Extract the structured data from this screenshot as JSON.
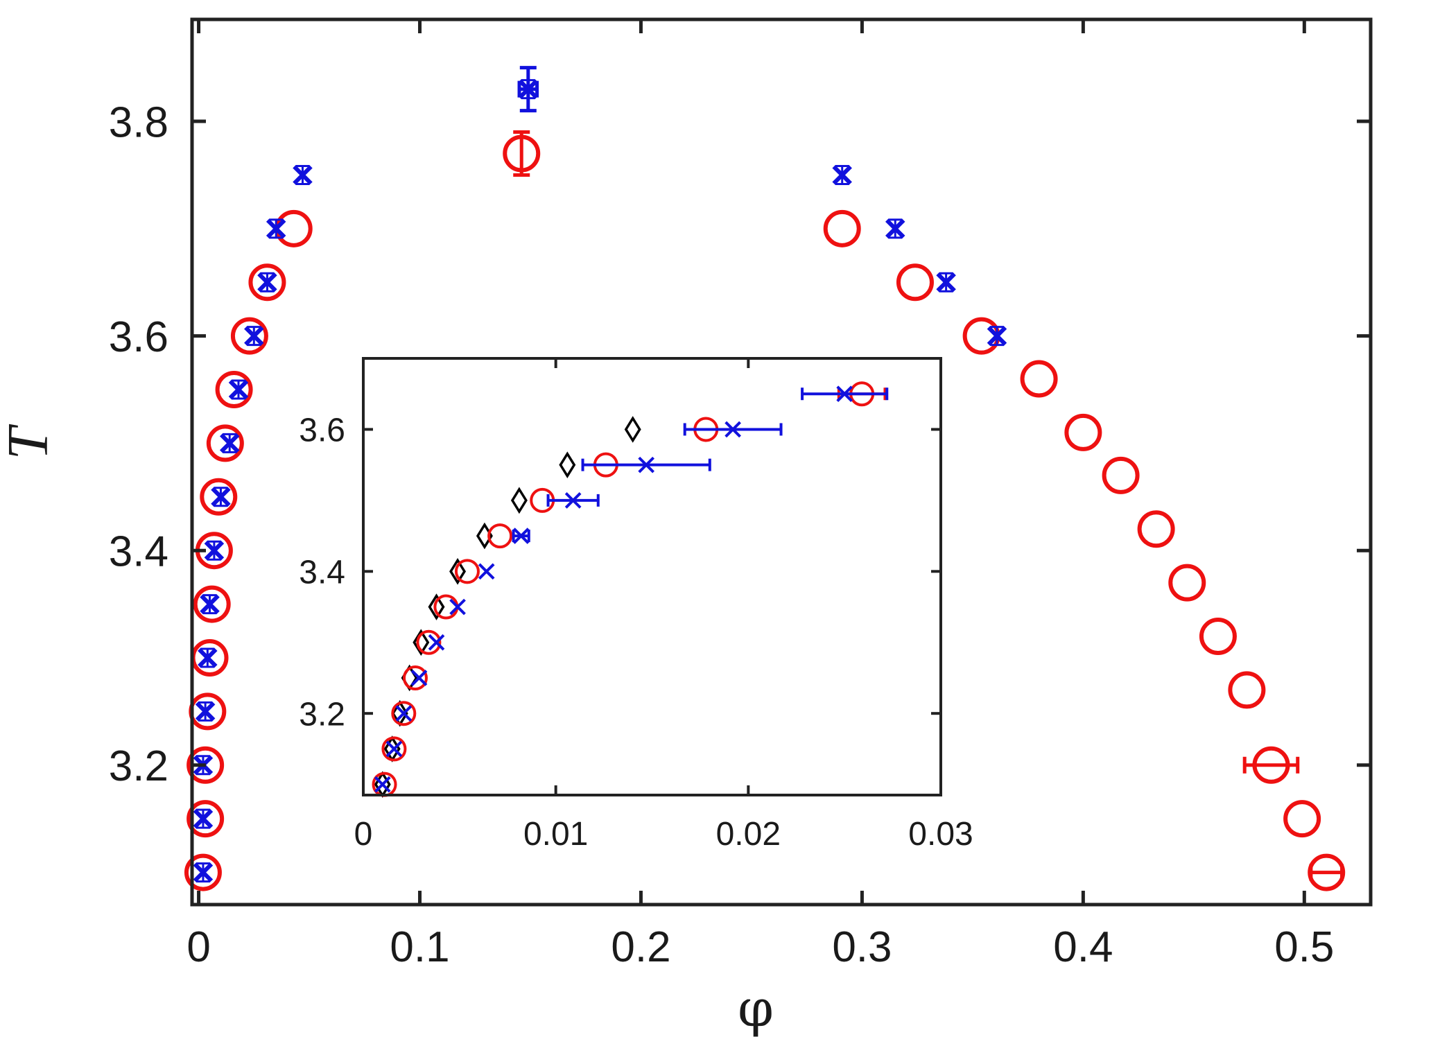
{
  "chart_data": [
    {
      "id": "main",
      "type": "scatter",
      "xlabel": "φ",
      "ylabel": "T",
      "xlim": [
        -0.003,
        0.53
      ],
      "ylim": [
        3.07,
        3.895
      ],
      "xticks": [
        0,
        0.1,
        0.2,
        0.3,
        0.4,
        0.5
      ],
      "xtick_labels": [
        "0",
        "0.1",
        "0.2",
        "0.3",
        "0.4",
        "0.5"
      ],
      "yticks": [
        3.2,
        3.4,
        3.6,
        3.8
      ],
      "ytick_labels": [
        "3.2",
        "3.4",
        "3.6",
        "3.8"
      ],
      "grid": false,
      "series": [
        {
          "name": "red circles",
          "marker": "circle",
          "color": "#ee1111",
          "points": [
            {
              "x": 0.002,
              "y": 3.1
            },
            {
              "x": 0.003,
              "y": 3.15
            },
            {
              "x": 0.003,
              "y": 3.2
            },
            {
              "x": 0.004,
              "y": 3.25
            },
            {
              "x": 0.005,
              "y": 3.3
            },
            {
              "x": 0.006,
              "y": 3.35
            },
            {
              "x": 0.007,
              "y": 3.4
            },
            {
              "x": 0.009,
              "y": 3.45
            },
            {
              "x": 0.012,
              "y": 3.5
            },
            {
              "x": 0.016,
              "y": 3.55
            },
            {
              "x": 0.023,
              "y": 3.6
            },
            {
              "x": 0.031,
              "y": 3.65
            },
            {
              "x": 0.043,
              "y": 3.7
            },
            {
              "x": 0.146,
              "y": 3.77,
              "yerr": 0.02
            },
            {
              "x": 0.291,
              "y": 3.7
            },
            {
              "x": 0.324,
              "y": 3.65
            },
            {
              "x": 0.354,
              "y": 3.6
            },
            {
              "x": 0.38,
              "y": 3.56
            },
            {
              "x": 0.4,
              "y": 3.51
            },
            {
              "x": 0.417,
              "y": 3.47
            },
            {
              "x": 0.433,
              "y": 3.42
            },
            {
              "x": 0.447,
              "y": 3.37
            },
            {
              "x": 0.461,
              "y": 3.32
            },
            {
              "x": 0.474,
              "y": 3.27
            },
            {
              "x": 0.485,
              "y": 3.2,
              "xerr": 0.012
            },
            {
              "x": 0.499,
              "y": 3.15
            },
            {
              "x": 0.51,
              "y": 3.1,
              "xerr": 0.007
            }
          ]
        },
        {
          "name": "blue crosses",
          "marker": "x",
          "color": "#1111dd",
          "points": [
            {
              "x": 0.002,
              "y": 3.1
            },
            {
              "x": 0.002,
              "y": 3.15
            },
            {
              "x": 0.002,
              "y": 3.2
            },
            {
              "x": 0.003,
              "y": 3.25
            },
            {
              "x": 0.004,
              "y": 3.3
            },
            {
              "x": 0.005,
              "y": 3.35
            },
            {
              "x": 0.007,
              "y": 3.4
            },
            {
              "x": 0.01,
              "y": 3.45
            },
            {
              "x": 0.014,
              "y": 3.5
            },
            {
              "x": 0.018,
              "y": 3.55
            },
            {
              "x": 0.025,
              "y": 3.6
            },
            {
              "x": 0.031,
              "y": 3.65
            },
            {
              "x": 0.035,
              "y": 3.7
            },
            {
              "x": 0.047,
              "y": 3.75
            },
            {
              "x": 0.149,
              "y": 3.83,
              "yerr": 0.02,
              "xerr": 0.004
            },
            {
              "x": 0.291,
              "y": 3.75
            },
            {
              "x": 0.315,
              "y": 3.7
            },
            {
              "x": 0.338,
              "y": 3.65
            },
            {
              "x": 0.361,
              "y": 3.6
            }
          ]
        }
      ]
    },
    {
      "id": "inset",
      "type": "scatter",
      "xlim": [
        0,
        0.03
      ],
      "ylim": [
        3.085,
        3.7
      ],
      "xticks": [
        0,
        0.01,
        0.02,
        0.03
      ],
      "xtick_labels": [
        "0",
        "0.01",
        "0.02",
        "0.03"
      ],
      "yticks": [
        3.2,
        3.4,
        3.6
      ],
      "ytick_labels": [
        "3.2",
        "3.4",
        "3.6"
      ],
      "grid": false,
      "series": [
        {
          "name": "black diamonds",
          "marker": "diamond",
          "color": "#000000",
          "points": [
            {
              "x": 0.001,
              "y": 3.1
            },
            {
              "x": 0.0015,
              "y": 3.15
            },
            {
              "x": 0.0019,
              "y": 3.2
            },
            {
              "x": 0.0024,
              "y": 3.25
            },
            {
              "x": 0.003,
              "y": 3.3
            },
            {
              "x": 0.0038,
              "y": 3.35
            },
            {
              "x": 0.0049,
              "y": 3.4
            },
            {
              "x": 0.0063,
              "y": 3.45
            },
            {
              "x": 0.0081,
              "y": 3.5
            },
            {
              "x": 0.0106,
              "y": 3.55
            },
            {
              "x": 0.014,
              "y": 3.6
            }
          ]
        },
        {
          "name": "red circles",
          "marker": "circle",
          "color": "#ee1111",
          "points": [
            {
              "x": 0.0011,
              "y": 3.1
            },
            {
              "x": 0.0016,
              "y": 3.15
            },
            {
              "x": 0.0021,
              "y": 3.2
            },
            {
              "x": 0.0027,
              "y": 3.25
            },
            {
              "x": 0.0034,
              "y": 3.3
            },
            {
              "x": 0.0043,
              "y": 3.35
            },
            {
              "x": 0.0054,
              "y": 3.4
            },
            {
              "x": 0.0071,
              "y": 3.45
            },
            {
              "x": 0.0093,
              "y": 3.5
            },
            {
              "x": 0.0126,
              "y": 3.55
            },
            {
              "x": 0.0178,
              "y": 3.6
            },
            {
              "x": 0.0259,
              "y": 3.65,
              "xerr": 0.0012
            }
          ]
        },
        {
          "name": "blue crosses",
          "marker": "x",
          "color": "#1111dd",
          "points": [
            {
              "x": 0.001,
              "y": 3.1
            },
            {
              "x": 0.0016,
              "y": 3.15
            },
            {
              "x": 0.0021,
              "y": 3.2
            },
            {
              "x": 0.0029,
              "y": 3.25
            },
            {
              "x": 0.0038,
              "y": 3.3
            },
            {
              "x": 0.0049,
              "y": 3.35
            },
            {
              "x": 0.0064,
              "y": 3.4
            },
            {
              "x": 0.0082,
              "y": 3.45,
              "xerr": 0.0004
            },
            {
              "x": 0.0109,
              "y": 3.5,
              "xerr": 0.0013
            },
            {
              "x": 0.0147,
              "y": 3.55,
              "xerr": 0.0033
            },
            {
              "x": 0.0192,
              "y": 3.6,
              "xerr": 0.0025
            },
            {
              "x": 0.025,
              "y": 3.65,
              "xerr": 0.0022
            }
          ]
        }
      ]
    }
  ]
}
